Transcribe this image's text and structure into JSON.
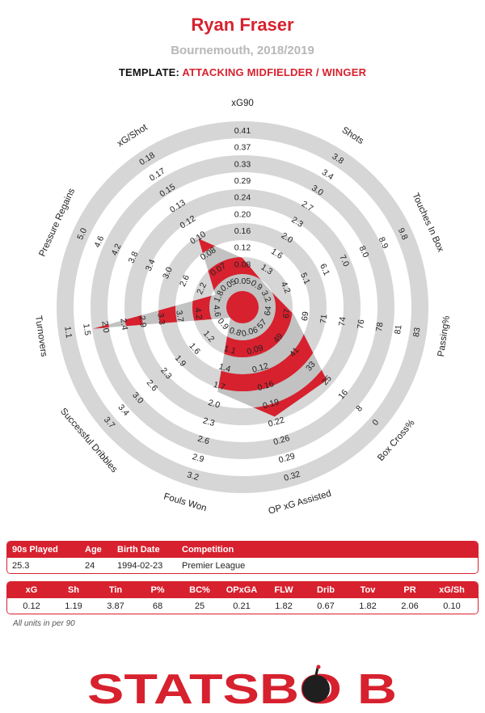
{
  "header": {
    "player": "Ryan Fraser",
    "subtitle": "Bournemouth, 2018/2019",
    "template_label": "TEMPLATE:",
    "template_value": "ATTACKING MIDFIELDER / WINGER"
  },
  "chart_data": {
    "type": "radar",
    "rings": 5,
    "axes": [
      {
        "label": "xG90",
        "ticks": [
          "0.05",
          "0.08",
          "0.12",
          "0.16",
          "0.20",
          "0.24",
          "0.29",
          "0.33",
          "0.37",
          "0.41"
        ],
        "value": 0.12,
        "min": 0.05,
        "max": 0.41
      },
      {
        "label": "Shots",
        "ticks": [
          "0.9",
          "1.3",
          "1.6",
          "2.0",
          "2.3",
          "2.7",
          "3.0",
          "3.4",
          "3.8"
        ],
        "value": 1.19,
        "min": 0.9,
        "max": 3.8
      },
      {
        "label": "Touches In Box",
        "ticks": [
          "3.2",
          "4.2",
          "5.1",
          "6.1",
          "7.0",
          "8.0",
          "8.9",
          "9.8"
        ],
        "value": 3.87,
        "min": 3.2,
        "max": 9.8
      },
      {
        "label": "Passing%",
        "ticks": [
          "64",
          "67",
          "69",
          "71",
          "74",
          "76",
          "78",
          "81",
          "83"
        ],
        "value": 68,
        "min": 64,
        "max": 83
      },
      {
        "label": "Box Cross%",
        "ticks": [
          "57",
          "49",
          "41",
          "33",
          "25",
          "16",
          "8",
          "0"
        ],
        "value": 25,
        "min": 57,
        "max": 0
      },
      {
        "label": "OP xG Assisted",
        "ticks": [
          "0.06",
          "0.09",
          "0.12",
          "0.16",
          "0.19",
          "0.22",
          "0.26",
          "0.29",
          "0.32"
        ],
        "value": 0.21,
        "min": 0.06,
        "max": 0.32
      },
      {
        "label": "Fouls Won",
        "ticks": [
          "0.8",
          "1.1",
          "1.4",
          "1.7",
          "2.0",
          "2.3",
          "2.6",
          "2.9",
          "3.2"
        ],
        "value": 1.82,
        "min": 0.8,
        "max": 3.2
      },
      {
        "label": "Successful Dribbles",
        "ticks": [
          "0.9",
          "1.2",
          "1.6",
          "1.9",
          "2.3",
          "2.6",
          "3.0",
          "3.4",
          "3.7"
        ],
        "value": 0.67,
        "min": 0.9,
        "max": 3.7
      },
      {
        "label": "Turnovers",
        "ticks": [
          "4.6",
          "4.2",
          "3.7",
          "3.3",
          "2.9",
          "2.4",
          "2.0",
          "1.5",
          "1.1"
        ],
        "value": 1.82,
        "min": 4.6,
        "max": 1.1
      },
      {
        "label": "Pressure Regains",
        "ticks": [
          "1.8",
          "2.2",
          "2.6",
          "3.0",
          "3.4",
          "3.8",
          "4.2",
          "4.6",
          "5.0"
        ],
        "value": 2.06,
        "min": 1.8,
        "max": 5.0
      },
      {
        "label": "xG/Shot",
        "ticks": [
          "0.05",
          "0.07",
          "0.08",
          "0.10",
          "0.12",
          "0.13",
          "0.15",
          "0.17",
          "0.18"
        ],
        "value": 0.1,
        "min": 0.05,
        "max": 0.18
      }
    ],
    "colors": {
      "fill": "#d7212e",
      "ring": "#d6d6d6",
      "polygon": "#9a9a9a"
    }
  },
  "info_table": {
    "headers": [
      "90s Played",
      "Age",
      "Birth Date",
      "Competition"
    ],
    "values": [
      "25.3",
      "24",
      "1994-02-23",
      "Premier League"
    ]
  },
  "stats_table": {
    "headers": [
      "xG",
      "Sh",
      "Tin",
      "P%",
      "BC%",
      "OPxGA",
      "FLW",
      "Drib",
      "Tov",
      "PR",
      "xG/Sh"
    ],
    "values": [
      "0.12",
      "1.19",
      "3.87",
      "68",
      "25",
      "0.21",
      "1.82",
      "0.67",
      "1.82",
      "2.06",
      "0.10"
    ]
  },
  "units_note": "All units in per 90",
  "logo": {
    "text": "STATSBOMB"
  }
}
